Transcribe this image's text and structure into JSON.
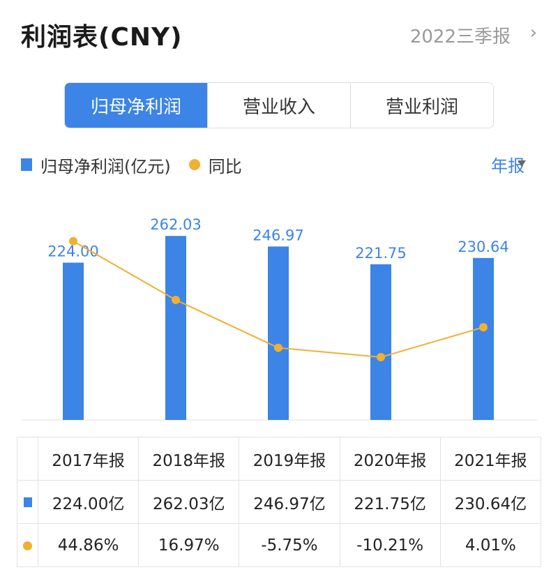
{
  "header": {
    "title": "利润表(CNY)",
    "period": "2022三季报",
    "chevron": "›"
  },
  "tabs": [
    {
      "label": "归母净利润",
      "active": true
    },
    {
      "label": "营业收入",
      "active": false
    },
    {
      "label": "营业利润",
      "active": false
    }
  ],
  "legend": {
    "bar": "归母净利润(亿元)",
    "line": "同比"
  },
  "freq": {
    "label": "年报"
  },
  "chart_data": {
    "type": "bar",
    "categories": [
      "2017年报",
      "2018年报",
      "2019年报",
      "2020年报",
      "2021年报"
    ],
    "series": [
      {
        "name": "归母净利润(亿元)",
        "type": "bar",
        "values": [
          224.0,
          262.03,
          246.97,
          221.75,
          230.64
        ],
        "color": "#3c84e6"
      },
      {
        "name": "同比",
        "type": "line",
        "values": [
          44.86,
          16.97,
          -5.75,
          -10.21,
          4.01
        ],
        "color": "#f0b030"
      }
    ],
    "bar_labels": [
      "224.00",
      "262.03",
      "246.97",
      "221.75",
      "230.64"
    ],
    "ylim": [
      0,
      300
    ],
    "line_ylim": [
      -40,
      60
    ]
  },
  "table": {
    "headers": [
      "2017年报",
      "2018年报",
      "2019年报",
      "2020年报",
      "2021年报"
    ],
    "row_values": [
      "224.00亿",
      "262.03亿",
      "246.97亿",
      "221.75亿",
      "230.64亿"
    ],
    "row_yoy": [
      "44.86%",
      "16.97%",
      "-5.75%",
      "-10.21%",
      "4.01%"
    ]
  },
  "colors": {
    "accent": "#3c84e6",
    "line": "#f0b030",
    "positive": "#e04848",
    "negative": "#1a9a5a"
  }
}
